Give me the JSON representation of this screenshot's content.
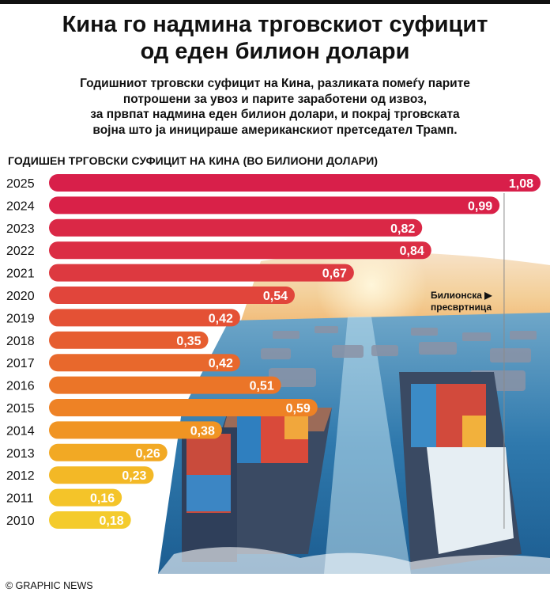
{
  "header": {
    "title_line1": "Кина го надмина трговскиот суфицит",
    "title_line2": "од еден билион долари",
    "subtitle_lines": [
      "Годишниот трговски суфицит на Кина, разликата помеѓу парите",
      "потрошени за увоз и парите заработени од извоз,",
      "за првпат надмина еден билион долари, и покрај трговската",
      "војна што ја иницираше американскиот претседател Трамп."
    ]
  },
  "chart_data": {
    "type": "bar",
    "orientation": "horizontal",
    "title": "ГОДИШЕН ТРГОВСКИ СУФИЦИТ НА КИНА (ВО БИЛИОНИ ДОЛАРИ)",
    "categories": [
      "2025",
      "2024",
      "2023",
      "2022",
      "2021",
      "2020",
      "2019",
      "2018",
      "2017",
      "2016",
      "2015",
      "2014",
      "2013",
      "2012",
      "2011",
      "2010"
    ],
    "values": [
      1.08,
      0.99,
      0.82,
      0.84,
      0.67,
      0.54,
      0.42,
      0.35,
      0.42,
      0.51,
      0.59,
      0.38,
      0.26,
      0.23,
      0.16,
      0.18
    ],
    "value_labels": [
      "1,08",
      "0,99",
      "0,82",
      "0,84",
      "0,67",
      "0,54",
      "0,42",
      "0,35",
      "0,42",
      "0,51",
      "0,59",
      "0,38",
      "0,26",
      "0,23",
      "0,16",
      "0,18"
    ],
    "xlim": [
      0,
      1.08
    ],
    "reference_line": {
      "value": 1.0,
      "label_line1": "Билионска",
      "label_line2": "пресвртница",
      "arrow": "▶"
    },
    "colors": [
      "#d81f4a",
      "#d92148",
      "#da2846",
      "#db2d44",
      "#dd3940",
      "#e1453b",
      "#e45135",
      "#e65d30",
      "#e8682c",
      "#eb7528",
      "#ee8225",
      "#f09423",
      "#f2a924",
      "#f3b826",
      "#f4c429",
      "#f4cb2c"
    ]
  },
  "footer": {
    "credit": "© GRAPHIC NEWS"
  }
}
